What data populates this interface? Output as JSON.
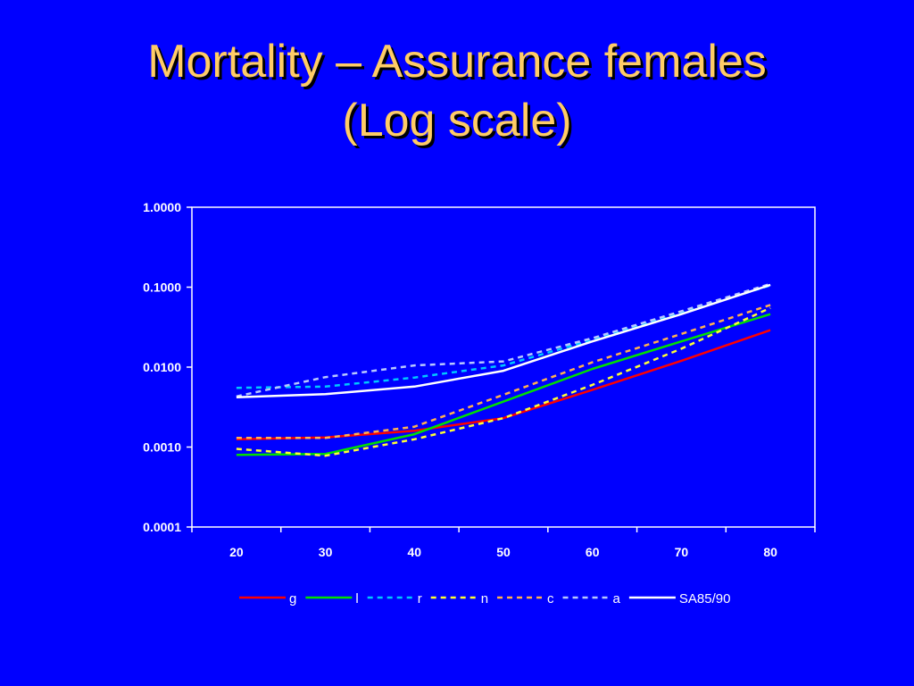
{
  "slide": {
    "title_line1": "Mortality – Assurance females",
    "title_line2": "(Log scale)"
  },
  "chart_data": {
    "type": "line",
    "title": "Mortality – Assurance females (Log scale)",
    "xlabel": "",
    "ylabel": "",
    "yscale": "log",
    "ylim": [
      0.0001,
      1.0
    ],
    "y_ticks": [
      1.0,
      0.1,
      0.01,
      0.001,
      0.0001
    ],
    "y_tick_labels": [
      "1.0000",
      "0.1000",
      "0.0100",
      "0.0010",
      "0.0001"
    ],
    "x": [
      20,
      30,
      40,
      50,
      60,
      70,
      80
    ],
    "x_tick_labels": [
      "20",
      "30",
      "40",
      "50",
      "60",
      "70",
      "80"
    ],
    "grid": false,
    "legend_position": "bottom",
    "series": [
      {
        "name": "g",
        "color": "#ff0000",
        "dash": "solid",
        "values": [
          0.00125,
          0.00132,
          0.0016,
          0.0023,
          0.0052,
          0.012,
          0.029
        ]
      },
      {
        "name": "l",
        "color": "#00e000",
        "dash": "solid",
        "values": [
          0.0008,
          0.00082,
          0.00145,
          0.0037,
          0.0095,
          0.021,
          0.046
        ]
      },
      {
        "name": "r",
        "color": "#00c8ff",
        "dash": "dashed",
        "values": [
          0.0055,
          0.0057,
          0.0074,
          0.0105,
          0.022,
          0.048,
          0.105
        ]
      },
      {
        "name": "n",
        "color": "#ffff33",
        "dash": "dashed",
        "values": [
          0.00095,
          0.00078,
          0.00125,
          0.0023,
          0.006,
          0.017,
          0.055
        ]
      },
      {
        "name": "c",
        "color": "#ffb050",
        "dash": "dashed",
        "values": [
          0.0013,
          0.0013,
          0.0018,
          0.0045,
          0.0115,
          0.026,
          0.06
        ]
      },
      {
        "name": "a",
        "color": "#b8c8ff",
        "dash": "dashed",
        "values": [
          0.0043,
          0.0075,
          0.0105,
          0.0118,
          0.023,
          0.05,
          0.11
        ]
      },
      {
        "name": "SA85/90",
        "color": "#ffffff",
        "dash": "solid",
        "values": [
          0.0042,
          0.0046,
          0.0057,
          0.009,
          0.021,
          0.046,
          0.107
        ]
      }
    ]
  }
}
